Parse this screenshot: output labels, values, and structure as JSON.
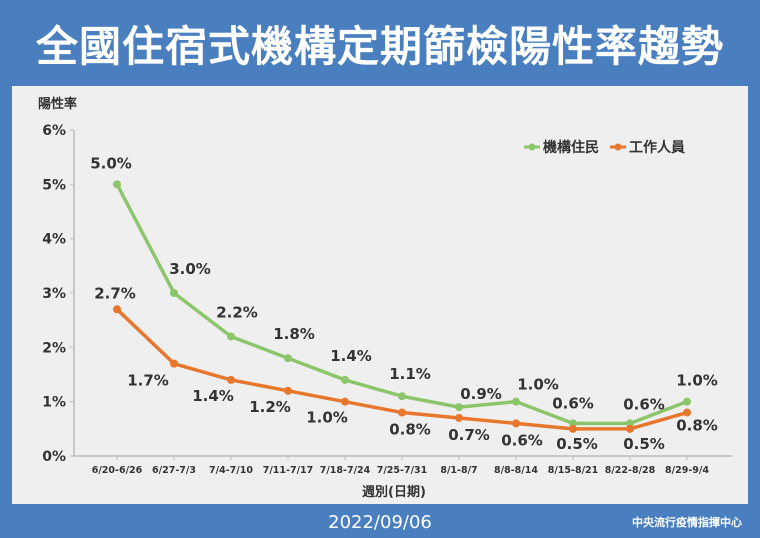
{
  "header": {
    "title": "全國住宿式機構定期篩檢陽性率趨勢"
  },
  "footer": {
    "date": "2022/09/06",
    "source": "中央流行疫情指揮中心"
  },
  "colors": {
    "background": "#4a7fbf",
    "panel": "#efefef",
    "residents": "#8cc66a",
    "staff": "#e8772e"
  },
  "chart_data": {
    "type": "line",
    "title": "",
    "xlabel": "週別(日期)",
    "ylabel": "陽性率",
    "ylim": [
      0,
      6
    ],
    "yticks": [
      "0%",
      "1%",
      "2%",
      "3%",
      "4%",
      "5%",
      "6%"
    ],
    "grid": false,
    "legend_position": "top-right",
    "categories": [
      "6/20-6/26",
      "6/27-7/3",
      "7/4-7/10",
      "7/11-7/17",
      "7/18-7/24",
      "7/25-7/31",
      "8/1-8/7",
      "8/8-8/14",
      "8/15-8/21",
      "8/22-8/28",
      "8/29-9/4"
    ],
    "series": [
      {
        "name": "機構住民",
        "color": "#8cc66a",
        "values": [
          5.0,
          3.0,
          2.2,
          1.8,
          1.4,
          1.1,
          0.9,
          1.0,
          0.6,
          0.6,
          1.0
        ],
        "labels": [
          "5.0%",
          "3.0%",
          "2.2%",
          "1.8%",
          "1.4%",
          "1.1%",
          "0.9%",
          "1.0%",
          "0.6%",
          "0.6%",
          "1.0%"
        ]
      },
      {
        "name": "工作人員",
        "color": "#e8772e",
        "values": [
          2.7,
          1.7,
          1.4,
          1.2,
          1.0,
          0.8,
          0.7,
          0.6,
          0.5,
          0.5,
          0.8
        ],
        "labels": [
          "2.7%",
          "1.7%",
          "1.4%",
          "1.2%",
          "1.0%",
          "0.8%",
          "0.7%",
          "0.6%",
          "0.5%",
          "0.5%",
          "0.8%"
        ]
      }
    ]
  }
}
